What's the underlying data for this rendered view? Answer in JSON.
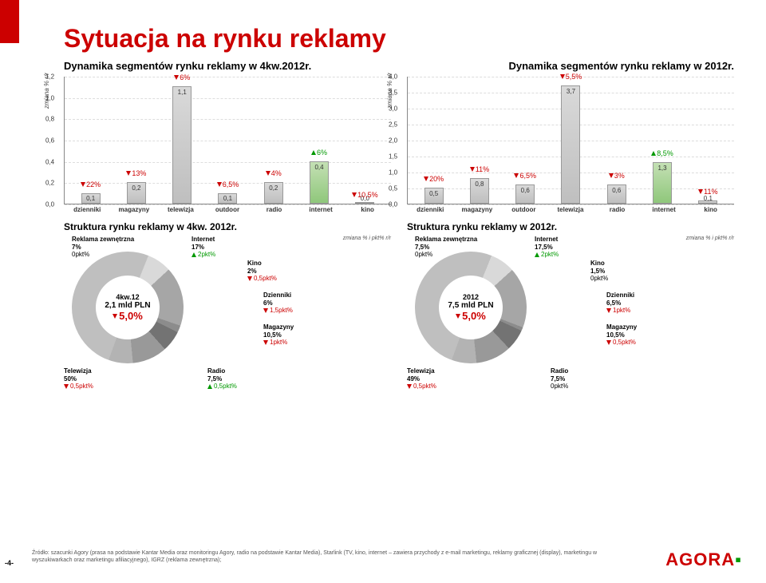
{
  "title": "Sytuacja na rynku reklamy",
  "subtitle_left": "Dynamika segmentów rynku reklamy w 4kw.2012r.",
  "subtitle_right": "Dynamika segmentów rynku reklamy w 2012r.",
  "yaxis_label": "zmiana % r/r",
  "chart_left": {
    "ylim": [
      0,
      1.2
    ],
    "ytick_step": 0.2,
    "yticks": [
      "0,0",
      "0,2",
      "0,4",
      "0,6",
      "0,8",
      "1,0",
      "1,2"
    ],
    "grid_color": "#dddddd",
    "categories": [
      "dzienniki",
      "magazyny",
      "telewizja",
      "outdoor",
      "radio",
      "internet",
      "kino"
    ],
    "bars": [
      {
        "val": 0.1,
        "val_s": "0,1",
        "pct": "22%",
        "dir": "down",
        "fill_top": "#d9d9d9",
        "fill_bot": "#bfbfbf"
      },
      {
        "val": 0.2,
        "val_s": "0,2",
        "pct": "13%",
        "dir": "down",
        "fill_top": "#d9d9d9",
        "fill_bot": "#bfbfbf"
      },
      {
        "val": 1.1,
        "val_s": "1,1",
        "pct": "6%",
        "dir": "down",
        "fill_top": "#d9d9d9",
        "fill_bot": "#bfbfbf"
      },
      {
        "val": 0.1,
        "val_s": "0,1",
        "pct": "6,5%",
        "dir": "down",
        "fill_top": "#d9d9d9",
        "fill_bot": "#bfbfbf"
      },
      {
        "val": 0.2,
        "val_s": "0,2",
        "pct": "4%",
        "dir": "down",
        "fill_top": "#d9d9d9",
        "fill_bot": "#bfbfbf"
      },
      {
        "val": 0.4,
        "val_s": "0,4",
        "pct": "6%",
        "dir": "up",
        "fill_top": "#c4e0b4",
        "fill_bot": "#8fc77b"
      },
      {
        "val": 0.0,
        "val_s": "0,0",
        "pct": "10,5%",
        "dir": "down",
        "fill_top": "#d9d9d9",
        "fill_bot": "#bfbfbf"
      }
    ]
  },
  "chart_right": {
    "ylim": [
      0,
      4.0
    ],
    "ytick_step": 0.5,
    "yticks": [
      "0,0",
      "0,5",
      "1,0",
      "1,5",
      "2,0",
      "2,5",
      "3,0",
      "3,5",
      "4,0"
    ],
    "grid_color": "#dddddd",
    "categories": [
      "dzienniki",
      "magazyny",
      "outdoor",
      "telewizja",
      "radio",
      "internet",
      "kino"
    ],
    "bars": [
      {
        "val": 0.5,
        "val_s": "0,5",
        "pct": "20%",
        "dir": "down",
        "fill_top": "#d9d9d9",
        "fill_bot": "#bfbfbf"
      },
      {
        "val": 0.8,
        "val_s": "0,8",
        "pct": "11%",
        "dir": "down",
        "fill_top": "#d9d9d9",
        "fill_bot": "#bfbfbf"
      },
      {
        "val": 0.6,
        "val_s": "0,6",
        "pct": "6,5%",
        "dir": "down",
        "fill_top": "#d9d9d9",
        "fill_bot": "#bfbfbf"
      },
      {
        "val": 3.7,
        "val_s": "3,7",
        "pct": "5,5%",
        "dir": "down",
        "fill_top": "#d9d9d9",
        "fill_bot": "#bfbfbf"
      },
      {
        "val": 0.6,
        "val_s": "0,6",
        "pct": "3%",
        "dir": "down",
        "fill_top": "#d9d9d9",
        "fill_bot": "#bfbfbf"
      },
      {
        "val": 1.3,
        "val_s": "1,3",
        "pct": "8,5%",
        "dir": "up",
        "fill_top": "#c4e0b4",
        "fill_bot": "#8fc77b"
      },
      {
        "val": 0.1,
        "val_s": "0,1",
        "pct": "11%",
        "dir": "down",
        "fill_top": "#d9d9d9",
        "fill_bot": "#bfbfbf"
      }
    ]
  },
  "struct_title_left": "Struktura rynku reklamy w 4kw. 2012r.",
  "struct_title_right": "Struktura rynku reklamy w 2012r.",
  "zmiana_label": "zmiana % i pkt% r/r",
  "donut_left": {
    "center_l1": "4kw.12",
    "center_l2": "2,1 mld PLN",
    "center_delta": "5,0%",
    "center_dir": "down",
    "slices": [
      {
        "label": "Telewizja",
        "pct": "50%",
        "delta": "0,5pkt%",
        "dir": "down",
        "color": "#bfbfbf"
      },
      {
        "label": "Reklama zewnętrzna",
        "pct": "7%",
        "delta": "0pkt%",
        "dir": "none",
        "color": "#d9d9d9"
      },
      {
        "label": "Internet",
        "pct": "17%",
        "delta": "2pkt%",
        "dir": "up",
        "color": "#a6a6a6"
      },
      {
        "label": "Kino",
        "pct": "2%",
        "delta": "0,5pkt%",
        "dir": "down",
        "color": "#8c8c8c"
      },
      {
        "label": "Dzienniki",
        "pct": "6%",
        "delta": "1,5pkt%",
        "dir": "down",
        "color": "#737373"
      },
      {
        "label": "Magazyny",
        "pct": "10,5%",
        "delta": "1pkt%",
        "dir": "down",
        "color": "#999999"
      },
      {
        "label": "Radio",
        "pct": "7,5%",
        "delta": "0,5pkt%",
        "dir": "up",
        "color": "#b3b3b3"
      }
    ]
  },
  "donut_right": {
    "center_l1": "2012",
    "center_l2": "7,5 mld PLN",
    "center_delta": "5,0%",
    "center_dir": "down",
    "slices": [
      {
        "label": "Telewizja",
        "pct": "49%",
        "delta": "0,5pkt%",
        "dir": "down",
        "color": "#bfbfbf"
      },
      {
        "label": "Reklama zewnętrzna",
        "pct": "7,5%",
        "delta": "0pkt%",
        "dir": "none",
        "color": "#d9d9d9"
      },
      {
        "label": "Internet",
        "pct": "17,5%",
        "delta": "2pkt%",
        "dir": "up",
        "color": "#a6a6a6"
      },
      {
        "label": "Kino",
        "pct": "1,5%",
        "delta": "0pkt%",
        "dir": "none",
        "color": "#8c8c8c"
      },
      {
        "label": "Dzienniki",
        "pct": "6,5%",
        "delta": "1pkt%",
        "dir": "down",
        "color": "#737373"
      },
      {
        "label": "Magazyny",
        "pct": "10,5%",
        "delta": "0,5pkt%",
        "dir": "down",
        "color": "#999999"
      },
      {
        "label": "Radio",
        "pct": "7,5%",
        "delta": "0pkt%",
        "dir": "none",
        "color": "#b3b3b3"
      }
    ]
  },
  "footnote": "Źródło: szacunki Agory (prasa na podstawie Kantar Media oraz monitoringu Agory, radio na podstawie Kantar Media), Starlink (TV, kino, internet – zawiera przychody z e-mail marketingu, reklamy graficznej (display), marketingu w wyszukiwarkach oraz marketingu afiliacyjnego), IGRZ (reklama zewnętrzna);",
  "page": "-4-",
  "logo": "AGORA"
}
